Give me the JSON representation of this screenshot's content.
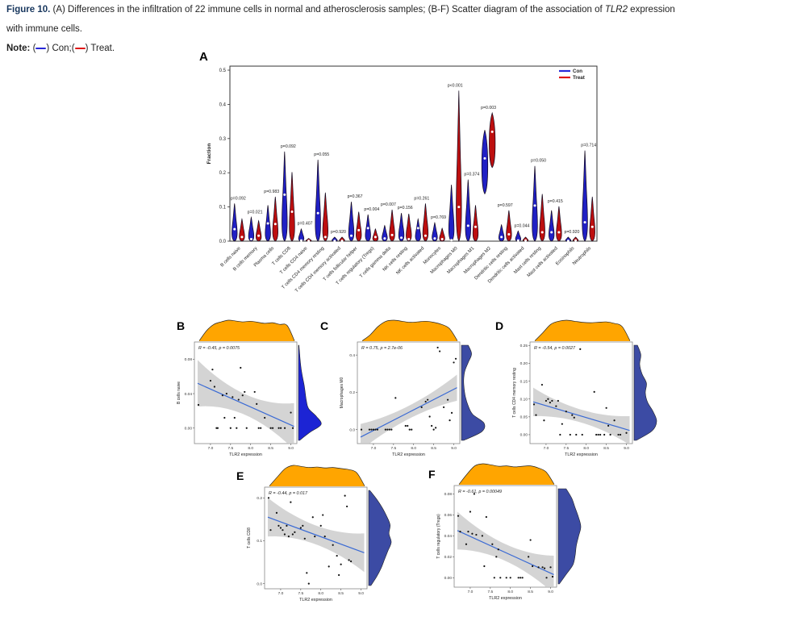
{
  "caption": {
    "label": "Figure 10.",
    "part1": " (A) Differences in the infiltration of 22 immune cells in normal and atherosclerosis samples; (B-F) Scatter diagram of the association of ",
    "gene": "TLR2",
    "part2": " expression",
    "line2": "with immune cells.",
    "note_label": "Note:",
    "note_items": [
      {
        "open": " (",
        "close": ") ",
        "label": "Con;"
      },
      {
        "open": "(",
        "close": ") ",
        "label": "Treat."
      }
    ]
  },
  "colors": {
    "con": "#2727d8",
    "treat": "#e01717",
    "violin_con": "#2020c4",
    "violin_treat": "#bd0f0f",
    "scatter_line": "#3a6ad4",
    "ci_band": "#c9c9c9",
    "top_density": "#ffa500",
    "figure_label": "#17365d"
  },
  "chart_data": [
    {
      "type": "violin",
      "panel_label": "A",
      "ylabel": "Fraction",
      "ylim": [
        0,
        0.5
      ],
      "yticks": [
        "0.0",
        "0.1",
        "0.2",
        "0.3",
        "0.4",
        "0.5"
      ],
      "legend": [
        {
          "label": "Con",
          "color": "#2727d8"
        },
        {
          "label": "Treat",
          "color": "#e01717"
        }
      ],
      "legend_position": "top-right",
      "grid": false,
      "categories": [
        "B cells naive",
        "B cells memory",
        "Plasma cells",
        "T cells CD8",
        "T cells CD4 naive",
        "T cells CD4 memory resting",
        "T cells CD4 memory activated",
        "T cells follicular helper",
        "T cells regulatory (Tregs)",
        "T cells gamma delta",
        "NK cells resting",
        "NK cells activated",
        "Monocytes",
        "Macrophages M0",
        "Macrophages M1",
        "Macrophages M2",
        "Dendritic cells resting",
        "Dendritic cells activated",
        "Mast cells resting",
        "Mast cells activated",
        "Eosinophils",
        "Neutrophils"
      ],
      "p_values": [
        "p=0.092",
        "p=0.021",
        "p=0.983",
        "p=0.092",
        "p=0.407",
        "p=0.055",
        "p=0.920",
        "p=0.367",
        "p=0.004",
        "p=0.007",
        "p=0.156",
        "p=0.261",
        "p=0.769",
        "p<0.001",
        "p=0.374",
        "p=0.003",
        "p=0.597",
        "p=0.044",
        "p=0.050",
        "p=0.415",
        "p=0.920",
        "p=0.714"
      ],
      "series": {
        "con": {
          "name": "Con",
          "min": [
            0,
            0,
            0,
            0,
            0,
            0,
            0,
            0,
            0,
            0,
            0,
            0,
            0,
            0,
            0,
            0.138,
            0,
            0,
            0,
            0,
            0,
            0
          ],
          "max": [
            0.11,
            0.07,
            0.105,
            0.262,
            0.036,
            0.238,
            0.012,
            0.115,
            0.078,
            0.046,
            0.082,
            0.065,
            0.054,
            0.165,
            0.18,
            0.325,
            0.048,
            0.03,
            0.22,
            0.09,
            0.012,
            0.265
          ],
          "median": [
            0.035,
            0.006,
            0.052,
            0.136,
            0.002,
            0.082,
            0.001,
            0.016,
            0.038,
            0.008,
            0.01,
            0.038,
            0.008,
            0.003,
            0.045,
            0.242,
            0.012,
            0.002,
            0.104,
            0.026,
            0.001,
            0.055
          ]
        },
        "treat": {
          "name": "Treat",
          "min": [
            0,
            0,
            0,
            0,
            0,
            0,
            0,
            0,
            0,
            0,
            0,
            0,
            0,
            0,
            0,
            0.215,
            0,
            0,
            0,
            0,
            0,
            0
          ],
          "max": [
            0.065,
            0.06,
            0.13,
            0.202,
            0.008,
            0.142,
            0.012,
            0.086,
            0.036,
            0.092,
            0.08,
            0.11,
            0.038,
            0.44,
            0.105,
            0.375,
            0.09,
            0.012,
            0.138,
            0.102,
            0.012,
            0.13
          ],
          "median": [
            0.012,
            0.016,
            0.05,
            0.086,
            0.001,
            0.012,
            0.001,
            0.032,
            0.012,
            0.018,
            0.006,
            0.016,
            0.006,
            0.1,
            0.042,
            0.32,
            0.02,
            0.002,
            0.026,
            0.026,
            0.002,
            0.042
          ]
        }
      }
    },
    {
      "type": "scatter",
      "panel_label": "B",
      "annotation": "R = -0.45, p = 0.0075",
      "xlabel": "TLR2 expression",
      "ylabel": "B cells naive",
      "xlim": [
        6.6,
        9.15
      ],
      "xticks": [
        "7.0",
        "7.5",
        "8.0",
        "8.5",
        "9.0"
      ],
      "ylim": [
        -0.018,
        0.1
      ],
      "yticks": [
        "0.08",
        "0.04",
        "0.00"
      ],
      "regression": {
        "x1": 6.68,
        "y1": 0.052,
        "x2": 9.08,
        "y2": 0.002,
        "band_mid": 0.012,
        "band_end": 0.027
      },
      "right_density_color": "#1c24d4",
      "points": [
        [
          6.7,
          0.027
        ],
        [
          7.0,
          0.055
        ],
        [
          7.05,
          0.068
        ],
        [
          7.1,
          0.048
        ],
        [
          7.15,
          0.0
        ],
        [
          7.18,
          0.0
        ],
        [
          7.3,
          0.038
        ],
        [
          7.35,
          0.012
        ],
        [
          7.4,
          0.04
        ],
        [
          7.5,
          0.0
        ],
        [
          7.55,
          0.036
        ],
        [
          7.6,
          0.012
        ],
        [
          7.65,
          0.0
        ],
        [
          7.7,
          0.033
        ],
        [
          7.75,
          0.07
        ],
        [
          7.8,
          0.038
        ],
        [
          7.85,
          0.042
        ],
        [
          7.9,
          0.0
        ],
        [
          8.1,
          0.042
        ],
        [
          8.15,
          0.028
        ],
        [
          8.2,
          0.0
        ],
        [
          8.25,
          0.0
        ],
        [
          8.35,
          0.012
        ],
        [
          8.5,
          0.0
        ],
        [
          8.55,
          0.0
        ],
        [
          8.7,
          0.0
        ],
        [
          8.75,
          0.0
        ],
        [
          8.85,
          0.0
        ],
        [
          9.0,
          0.018
        ],
        [
          9.05,
          0.0
        ]
      ],
      "top_density": [
        0.02,
        0.5,
        0.8,
        0.92,
        1,
        0.96,
        0.92,
        0.95,
        0.9,
        0.85,
        0.88,
        0.8,
        0.75,
        0.02
      ],
      "right_density": [
        0.02,
        0.05,
        0.08,
        0.12,
        0.18,
        0.25,
        0.3,
        0.35,
        0.45,
        0.8,
        1.0,
        0.5,
        0.05
      ]
    },
    {
      "type": "scatter",
      "panel_label": "C",
      "annotation": "R = 0.75, p = 2.7e-06",
      "xlabel": "TLR2 expression",
      "ylabel": "Macrophages M0",
      "xlim": [
        6.6,
        9.15
      ],
      "xticks": [
        "7.0",
        "7.5",
        "8.0",
        "8.5",
        "9.0"
      ],
      "ylim": [
        -0.075,
        0.47
      ],
      "yticks": [
        "0.4",
        "0.2",
        "0.0"
      ],
      "regression": {
        "x1": 6.68,
        "y1": -0.04,
        "x2": 9.08,
        "y2": 0.225,
        "band_mid": 0.035,
        "band_end": 0.07
      },
      "right_density_color": "#3c4ba4",
      "points": [
        [
          6.7,
          0.0
        ],
        [
          6.9,
          0.0
        ],
        [
          6.95,
          0.0
        ],
        [
          7.0,
          0.0
        ],
        [
          7.05,
          0.0
        ],
        [
          7.1,
          0.0
        ],
        [
          7.3,
          0.0
        ],
        [
          7.35,
          0.0
        ],
        [
          7.4,
          0.0
        ],
        [
          7.45,
          0.0
        ],
        [
          7.55,
          0.17
        ],
        [
          7.8,
          0.02
        ],
        [
          7.85,
          0.02
        ],
        [
          7.9,
          0.0
        ],
        [
          7.95,
          0.0
        ],
        [
          8.2,
          0.12
        ],
        [
          8.3,
          0.15
        ],
        [
          8.35,
          0.16
        ],
        [
          8.4,
          0.07
        ],
        [
          8.45,
          0.02
        ],
        [
          8.5,
          0.0
        ],
        [
          8.55,
          0.01
        ],
        [
          8.6,
          0.44
        ],
        [
          8.65,
          0.42
        ],
        [
          8.75,
          0.12
        ],
        [
          8.85,
          0.16
        ],
        [
          8.9,
          0.05
        ],
        [
          8.95,
          0.09
        ],
        [
          9.0,
          0.36
        ],
        [
          9.05,
          0.38
        ]
      ],
      "top_density": [
        0.02,
        0.3,
        0.7,
        0.95,
        1,
        0.95,
        0.9,
        0.92,
        0.95,
        0.9,
        0.8,
        0.6,
        0.02
      ],
      "right_density": [
        0.3,
        0.45,
        0.3,
        0.15,
        0.1,
        0.12,
        0.18,
        0.3,
        0.5,
        1.0,
        0.9,
        0.1
      ]
    },
    {
      "type": "scatter",
      "panel_label": "D",
      "annotation": "R = -0.54, p = 0.0027",
      "xlabel": "TLR2 expression",
      "ylabel": "T cells CD4 memory resting",
      "xlim": [
        6.6,
        9.15
      ],
      "xticks": [
        "7.0",
        "7.5",
        "8.0",
        "8.5",
        "9.0"
      ],
      "ylim": [
        -0.025,
        0.26
      ],
      "yticks": [
        "0.25",
        "0.20",
        "0.15",
        "0.10",
        "0.05",
        "0.00"
      ],
      "regression": {
        "x1": 6.68,
        "y1": 0.092,
        "x2": 9.08,
        "y2": 0.012,
        "band_mid": 0.018,
        "band_end": 0.04
      },
      "right_density_color": "#3c4ba4",
      "points": [
        [
          6.7,
          0.085
        ],
        [
          6.75,
          0.055
        ],
        [
          6.9,
          0.14
        ],
        [
          6.95,
          0.04
        ],
        [
          7.0,
          0.095
        ],
        [
          7.05,
          0.1
        ],
        [
          7.1,
          0.09
        ],
        [
          7.15,
          0.095
        ],
        [
          7.25,
          0.08
        ],
        [
          7.3,
          0.095
        ],
        [
          7.35,
          0.0
        ],
        [
          7.4,
          0.03
        ],
        [
          7.5,
          0.065
        ],
        [
          7.6,
          0.0
        ],
        [
          7.65,
          0.055
        ],
        [
          7.7,
          0.048
        ],
        [
          7.75,
          0.0
        ],
        [
          7.85,
          0.24
        ],
        [
          7.9,
          0.0
        ],
        [
          8.2,
          0.12
        ],
        [
          8.25,
          0.0
        ],
        [
          8.3,
          0.0
        ],
        [
          8.35,
          0.0
        ],
        [
          8.45,
          0.0
        ],
        [
          8.5,
          0.075
        ],
        [
          8.55,
          0.025
        ],
        [
          8.6,
          0.0
        ],
        [
          8.7,
          0.04
        ],
        [
          8.8,
          0.0
        ],
        [
          8.85,
          0.0
        ],
        [
          9.0,
          0.005
        ]
      ],
      "top_density": [
        0.02,
        0.4,
        0.8,
        0.95,
        1,
        0.95,
        0.9,
        0.88,
        0.9,
        0.92,
        0.85,
        0.7,
        0.02
      ],
      "right_density": [
        0.15,
        0.3,
        0.25,
        0.35,
        0.55,
        0.5,
        0.6,
        0.85,
        1.0,
        0.8,
        0.1
      ]
    },
    {
      "type": "scatter",
      "panel_label": "E",
      "annotation": "R = -0.44, p = 0.017",
      "xlabel": "TLR2 expression",
      "ylabel": "T cells CD8",
      "xlim": [
        6.6,
        9.15
      ],
      "xticks": [
        "7.0",
        "7.5",
        "8.0",
        "8.5",
        "9.0"
      ],
      "ylim": [
        -0.012,
        0.225
      ],
      "yticks": [
        "0.2",
        "0.1",
        "0.0"
      ],
      "regression": {
        "x1": 6.68,
        "y1": 0.155,
        "x2": 9.08,
        "y2": 0.072,
        "band_mid": 0.022,
        "band_end": 0.045
      },
      "right_density_color": "#3c4ba4",
      "points": [
        [
          6.7,
          0.2
        ],
        [
          6.75,
          0.125
        ],
        [
          6.9,
          0.165
        ],
        [
          6.95,
          0.135
        ],
        [
          7.0,
          0.13
        ],
        [
          7.05,
          0.125
        ],
        [
          7.1,
          0.115
        ],
        [
          7.15,
          0.135
        ],
        [
          7.2,
          0.11
        ],
        [
          7.25,
          0.19
        ],
        [
          7.3,
          0.115
        ],
        [
          7.35,
          0.12
        ],
        [
          7.5,
          0.13
        ],
        [
          7.55,
          0.135
        ],
        [
          7.6,
          0.105
        ],
        [
          7.65,
          0.025
        ],
        [
          7.7,
          0.0
        ],
        [
          7.8,
          0.155
        ],
        [
          7.85,
          0.11
        ],
        [
          8.0,
          0.135
        ],
        [
          8.05,
          0.16
        ],
        [
          8.1,
          0.11
        ],
        [
          8.2,
          0.04
        ],
        [
          8.3,
          0.09
        ],
        [
          8.4,
          0.065
        ],
        [
          8.45,
          0.02
        ],
        [
          8.5,
          0.045
        ],
        [
          8.6,
          0.205
        ],
        [
          8.65,
          0.18
        ],
        [
          8.7,
          0.055
        ],
        [
          8.75,
          0.052
        ]
      ],
      "top_density": [
        0.02,
        0.45,
        0.85,
        1,
        0.95,
        0.9,
        0.92,
        0.88,
        0.9,
        0.85,
        0.8,
        0.65,
        0.02
      ],
      "right_density": [
        0.05,
        0.35,
        0.6,
        0.8,
        0.95,
        0.9,
        1.0,
        0.85,
        0.7,
        0.55,
        0.35,
        0.1
      ]
    },
    {
      "type": "scatter",
      "panel_label": "F",
      "annotation": "R = -0.61, p = 0.00049",
      "xlabel": "TLR2 expression",
      "ylabel": "T cells regulatory (Tregs)",
      "xlim": [
        6.6,
        9.15
      ],
      "xticks": [
        "7.0",
        "7.5",
        "8.0",
        "8.5",
        "9.0"
      ],
      "ylim": [
        -0.009,
        0.088
      ],
      "yticks": [
        "0.08",
        "0.06",
        "0.04",
        "0.02",
        "0.00"
      ],
      "regression": {
        "x1": 6.68,
        "y1": 0.045,
        "x2": 9.08,
        "y2": 0.003,
        "band_mid": 0.008,
        "band_end": 0.018
      },
      "right_density_color": "#3c4ba4",
      "points": [
        [
          6.7,
          0.059
        ],
        [
          6.75,
          0.044
        ],
        [
          6.9,
          0.032
        ],
        [
          6.95,
          0.044
        ],
        [
          7.0,
          0.063
        ],
        [
          7.05,
          0.042
        ],
        [
          7.1,
          0.08
        ],
        [
          7.15,
          0.041
        ],
        [
          7.3,
          0.04
        ],
        [
          7.35,
          0.011
        ],
        [
          7.4,
          0.058
        ],
        [
          7.55,
          0.032
        ],
        [
          7.6,
          0.0
        ],
        [
          7.65,
          0.02
        ],
        [
          7.7,
          0.027
        ],
        [
          7.75,
          0.0
        ],
        [
          7.9,
          0.0
        ],
        [
          8.0,
          0.0
        ],
        [
          8.2,
          0.0
        ],
        [
          8.25,
          0.0
        ],
        [
          8.3,
          0.0
        ],
        [
          8.45,
          0.02
        ],
        [
          8.5,
          0.036
        ],
        [
          8.55,
          0.011
        ],
        [
          8.7,
          0.01
        ],
        [
          8.8,
          0.01
        ],
        [
          8.85,
          0.009
        ],
        [
          8.9,
          0.0
        ],
        [
          9.0,
          0.01
        ],
        [
          9.05,
          0.001
        ]
      ],
      "top_density": [
        0.02,
        0.5,
        0.9,
        1,
        0.95,
        0.88,
        0.9,
        0.85,
        0.88,
        0.9,
        0.8,
        0.6,
        0.02
      ],
      "right_density": [
        0.35,
        0.6,
        0.75,
        0.9,
        1.0,
        0.9,
        0.8,
        0.75,
        0.65,
        0.35,
        0.05
      ]
    }
  ]
}
